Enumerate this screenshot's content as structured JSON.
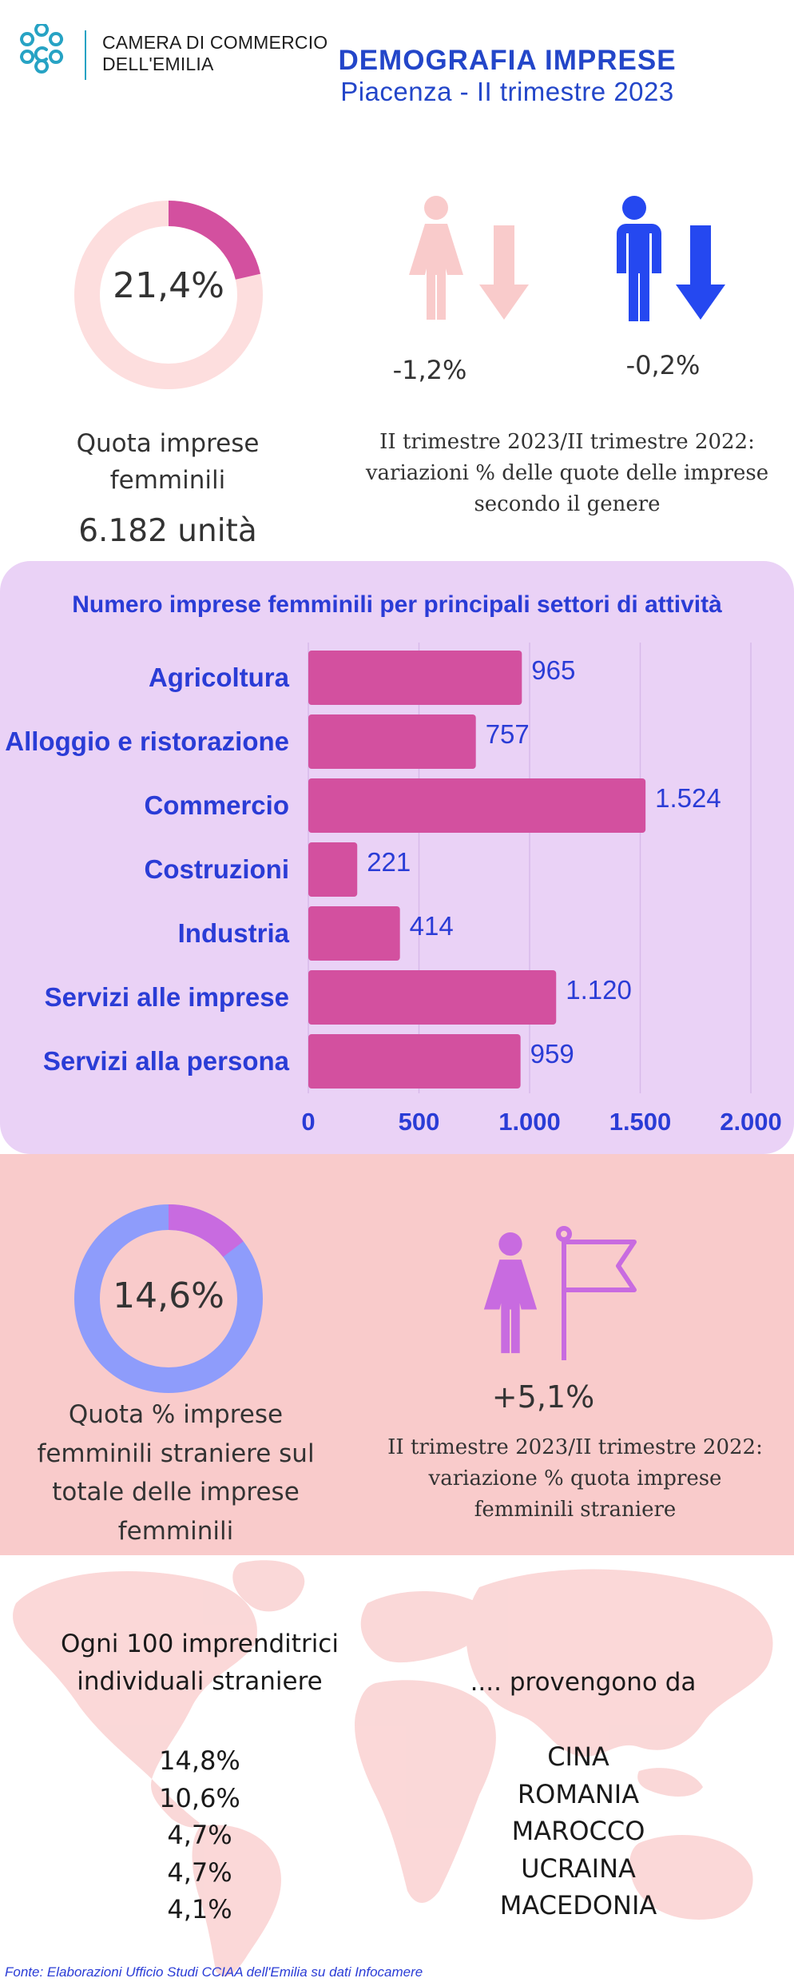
{
  "header": {
    "org_line1": "CAMERA DI COMMERCIO",
    "org_line2": "DELL'EMILIA",
    "title": "DEMOGRAFIA IMPRESE",
    "subtitle": "Piacenza - II trimestre 2023"
  },
  "share_section": {
    "donut_percent": 21.4,
    "donut_label": "21,4%",
    "caption_line1": "Quota imprese",
    "caption_line2": "femminili",
    "units": "6.182 unità",
    "female_change": "-1,2%",
    "male_change": "-0,2%",
    "note_line1": "II trimestre 2023/II trimestre 2022:",
    "note_line2": "variazioni % delle quote delle imprese",
    "note_line3": "secondo il genere",
    "colors": {
      "donut_fill": "#d3509f",
      "donut_track": "#fddede",
      "female": "#f9cbcb",
      "male": "#2548f0"
    },
    "icons": [
      "woman-icon",
      "arrow-down-icon",
      "man-icon",
      "arrow-down-icon"
    ]
  },
  "chart_data": {
    "type": "bar",
    "orientation": "horizontal",
    "title": "Numero imprese femminili per principali settori di attività",
    "categories": [
      "Agricoltura",
      "Alloggio e ristorazione",
      "Commercio",
      "Costruzioni",
      "Industria",
      "Servizi alle imprese",
      "Servizi alla persona"
    ],
    "values": [
      965,
      757,
      1524,
      221,
      414,
      1120,
      959
    ],
    "value_labels": [
      "965",
      "757",
      "1.524",
      "221",
      "414",
      "1.120",
      "959"
    ],
    "xlim": [
      0,
      2000
    ],
    "xticks": [
      0,
      500,
      1000,
      1500,
      2000
    ],
    "xtick_labels": [
      "0",
      "500",
      "1.000",
      "1.500",
      "2.000"
    ],
    "grid": true,
    "colors": {
      "bar": "#d3509f",
      "text": "#2a3cd6",
      "background": "#ead2f6"
    }
  },
  "foreign_section": {
    "donut_percent": 14.6,
    "donut_label": "14,6%",
    "caption_lines": [
      "Quota  % imprese",
      "femminili straniere sul",
      "totale delle imprese",
      "femminili"
    ],
    "change": "+5,1%",
    "note_line1": "II trimestre 2023/II trimestre 2022:",
    "note_line2": "variazione % quota imprese",
    "note_line3": "femminili straniere",
    "colors": {
      "donut_fill": "#c86be0",
      "donut_track": "#8e9cfb",
      "icon": "#c86be0",
      "background": "#f9cbcb"
    },
    "icons": [
      "woman-icon",
      "flag-icon"
    ]
  },
  "origin_section": {
    "intro_line1": "Ogni 100 imprenditrici",
    "intro_line2": "individuali straniere",
    "from_label": ".... provengono da",
    "percentages": [
      "14,8%",
      "10,6%",
      "4,7%",
      "4,7%",
      "4,1%"
    ],
    "countries": [
      "CINA",
      "ROMANIA",
      "MAROCCO",
      "UCRAINA",
      "MACEDONIA"
    ],
    "colors": {
      "map": "#f9cbcb"
    },
    "icons": [
      "world-map-icon"
    ]
  },
  "source": "Fonte: Elaborazioni Ufficio Studi CCIAA dell'Emilia su dati Infocamere"
}
